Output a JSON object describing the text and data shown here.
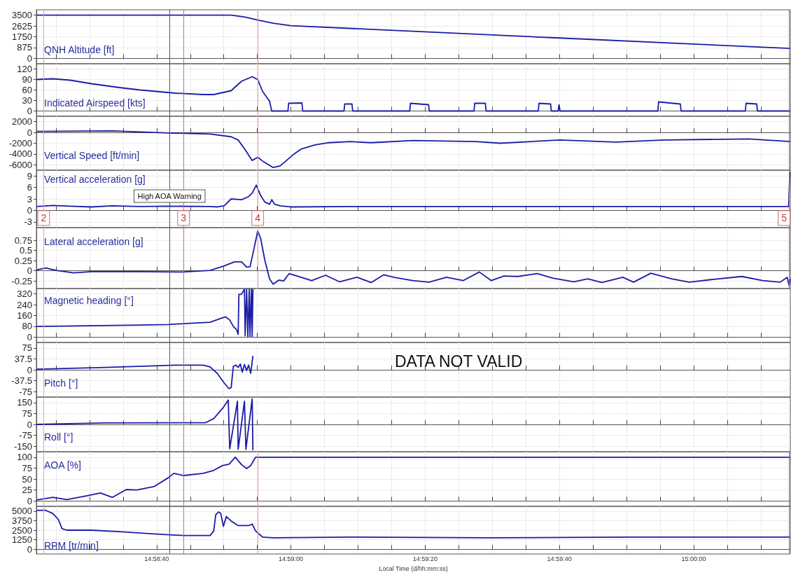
{
  "chart_data": [
    {
      "type": "line",
      "ylabel": "QNH Altitude [ft]",
      "color": "#1c1ca8",
      "grid": true,
      "tick_labels": "y",
      "xlim": [
        14.9728,
        15.004
      ],
      "ylim": [
        -437.5,
        3937.5
      ],
      "yticks": [
        0,
        875,
        1750,
        2625,
        3500
      ],
      "xticks": [
        {
          "value": 14.973611,
          "label": null
        },
        {
          "value": 14.975,
          "label": null
        },
        {
          "value": 14.976389,
          "label": null
        },
        {
          "value": 14.977778,
          "label": null
        },
        {
          "value": 14.979167,
          "label": null
        },
        {
          "value": 14.980556,
          "label": null
        },
        {
          "value": 14.981944,
          "label": null
        },
        {
          "value": 14.983333,
          "label": null
        },
        {
          "value": 14.984722,
          "label": null
        },
        {
          "value": 14.986111,
          "label": null
        },
        {
          "value": 14.9875,
          "label": null
        },
        {
          "value": 14.988889,
          "label": null
        },
        {
          "value": 14.990278,
          "label": null
        },
        {
          "value": 14.991667,
          "label": null
        },
        {
          "value": 14.993056,
          "label": null
        },
        {
          "value": 14.994444,
          "label": null
        },
        {
          "value": 14.995833,
          "label": null
        },
        {
          "value": 14.997222,
          "label": null
        },
        {
          "value": 14.998611,
          "label": null
        },
        {
          "value": 15.0,
          "label": null
        },
        {
          "value": 15.001389,
          "label": null
        },
        {
          "value": 15.002778,
          "label": null
        }
      ],
      "ref_lines": [
        {
          "axis": "x",
          "value": 14.9731,
          "color": "#e8a0a0"
        },
        {
          "axis": "x",
          "value": 14.97831,
          "color": "#555555"
        },
        {
          "axis": "x",
          "value": 14.97889,
          "color": "#d46a6a"
        },
        {
          "axis": "x",
          "value": 14.98196,
          "color": "#e8a0a0"
        },
        {
          "axis": "x",
          "value": 15.00395,
          "color": "#d46a6a"
        }
      ],
      "x": [
        14.97281,
        14.98086,
        14.98144,
        14.98196,
        14.9826,
        14.98332,
        14.99446,
        15.004
      ],
      "values": [
        3500,
        3500,
        3350,
        3100,
        2850,
        2650,
        1650,
        800
      ]
    },
    {
      "type": "line",
      "ylabel": "Indicated Airspeed [kts]",
      "color": "#1c1ca8",
      "grid": true,
      "tick_labels": "y",
      "xlim": [
        14.9728,
        15.004
      ],
      "ylim": [
        -15,
        135
      ],
      "yticks": [
        0,
        30,
        60,
        90,
        120
      ],
      "xticks": [
        {
          "value": 14.973611,
          "label": null
        },
        {
          "value": 14.975,
          "label": null
        },
        {
          "value": 14.976389,
          "label": null
        },
        {
          "value": 14.977778,
          "label": null
        },
        {
          "value": 14.979167,
          "label": null
        },
        {
          "value": 14.980556,
          "label": null
        },
        {
          "value": 14.981944,
          "label": null
        },
        {
          "value": 14.983333,
          "label": null
        },
        {
          "value": 14.984722,
          "label": null
        },
        {
          "value": 14.986111,
          "label": null
        },
        {
          "value": 14.9875,
          "label": null
        },
        {
          "value": 14.988889,
          "label": null
        },
        {
          "value": 14.990278,
          "label": null
        },
        {
          "value": 14.991667,
          "label": null
        },
        {
          "value": 14.993056,
          "label": null
        },
        {
          "value": 14.994444,
          "label": null
        },
        {
          "value": 14.995833,
          "label": null
        },
        {
          "value": 14.997222,
          "label": null
        },
        {
          "value": 14.998611,
          "label": null
        },
        {
          "value": 15.0,
          "label": null
        },
        {
          "value": 15.001389,
          "label": null
        },
        {
          "value": 15.002778,
          "label": null
        }
      ],
      "ref_lines": [
        {
          "axis": "x",
          "value": 14.9731,
          "color": "#e8a0a0"
        },
        {
          "axis": "x",
          "value": 14.97831,
          "color": "#555555"
        },
        {
          "axis": "x",
          "value": 14.97889,
          "color": "#d46a6a"
        },
        {
          "axis": "x",
          "value": 14.98196,
          "color": "#e8a0a0"
        },
        {
          "axis": "x",
          "value": 15.00395,
          "color": "#d46a6a"
        }
      ],
      "x": [
        14.97281,
        14.97348,
        14.9742,
        14.97507,
        14.97623,
        14.9771,
        14.97855,
        14.9797,
        14.98014,
        14.98086,
        14.98129,
        14.98173,
        14.98196,
        14.98216,
        14.98245,
        14.98254,
        14.98321,
        14.98324,
        14.98379,
        14.98382,
        14.98553,
        14.98556,
        14.98586,
        14.98589,
        14.98825,
        14.98828,
        14.98903,
        14.98906,
        14.99091,
        14.99094,
        14.99138,
        14.99141,
        14.99357,
        14.9936,
        14.99408,
        14.99411,
        14.99439,
        14.99443,
        14.99447,
        14.99852,
        14.99855,
        14.99945,
        14.99948,
        15.00214,
        15.00217,
        15.00261,
        15.00264,
        15.004
      ],
      "values": [
        90,
        92,
        88,
        78,
        67,
        60,
        51,
        47,
        47,
        58,
        85,
        98,
        90,
        56,
        28,
        0,
        0,
        22,
        23,
        0,
        0,
        20,
        20,
        0,
        0,
        22,
        18,
        0,
        0,
        22,
        22,
        0,
        0,
        22,
        20,
        0,
        0,
        18,
        0,
        0,
        26,
        20,
        0,
        0,
        22,
        20,
        0,
        0
      ]
    },
    {
      "type": "line",
      "ylabel": "Vertical Speed [ft/min]",
      "color": "#1c1ca8",
      "grid": true,
      "tick_labels": "y",
      "xlim": [
        14.9728,
        15.004
      ],
      "ylim": [
        -7000,
        3000
      ],
      "yticks": [
        -6000,
        -4000,
        -2000,
        0,
        2000
      ],
      "xticks": [
        {
          "value": 14.973611,
          "label": null
        },
        {
          "value": 14.975,
          "label": null
        },
        {
          "value": 14.976389,
          "label": null
        },
        {
          "value": 14.977778,
          "label": null
        },
        {
          "value": 14.979167,
          "label": null
        },
        {
          "value": 14.980556,
          "label": null
        },
        {
          "value": 14.981944,
          "label": null
        },
        {
          "value": 14.983333,
          "label": null
        },
        {
          "value": 14.984722,
          "label": null
        },
        {
          "value": 14.986111,
          "label": null
        },
        {
          "value": 14.9875,
          "label": null
        },
        {
          "value": 14.988889,
          "label": null
        },
        {
          "value": 14.990278,
          "label": null
        },
        {
          "value": 14.991667,
          "label": null
        },
        {
          "value": 14.993056,
          "label": null
        },
        {
          "value": 14.994444,
          "label": null
        },
        {
          "value": 14.995833,
          "label": null
        },
        {
          "value": 14.997222,
          "label": null
        },
        {
          "value": 14.998611,
          "label": null
        },
        {
          "value": 15.0,
          "label": null
        },
        {
          "value": 15.001389,
          "label": null
        },
        {
          "value": 15.002778,
          "label": null
        }
      ],
      "ref_lines": [
        {
          "axis": "x",
          "value": 14.9731,
          "color": "#e8a0a0"
        },
        {
          "axis": "x",
          "value": 14.97831,
          "color": "#555555"
        },
        {
          "axis": "x",
          "value": 14.97889,
          "color": "#d46a6a"
        },
        {
          "axis": "x",
          "value": 14.98196,
          "color": "#e8a0a0"
        },
        {
          "axis": "x",
          "value": 15.00395,
          "color": "#d46a6a"
        }
      ],
      "x": [
        14.97281,
        14.97594,
        14.97826,
        14.97999,
        14.98086,
        14.98115,
        14.98144,
        14.98173,
        14.98196,
        14.98216,
        14.9826,
        14.98289,
        14.98346,
        14.98375,
        14.98433,
        14.98491,
        14.98578,
        14.98665,
        14.98838,
        14.99099,
        14.992,
        14.99446,
        14.99678,
        14.9988,
        15.00228,
        15.004
      ],
      "values": [
        200,
        300,
        -100,
        -300,
        -800,
        -1400,
        -3200,
        -5200,
        -4600,
        -5300,
        -6500,
        -6200,
        -4000,
        -3100,
        -2300,
        -1900,
        -1700,
        -1900,
        -1500,
        -1700,
        -2000,
        -1400,
        -1800,
        -1400,
        -1200,
        -1700
      ]
    },
    {
      "type": "line",
      "ylabel": "Vertical acceleration [g]",
      "color": "#1c1ca8",
      "grid": true,
      "tick_labels": "y",
      "xlim": [
        14.9728,
        15.004
      ],
      "ylim": [
        -4.5,
        10.5
      ],
      "yticks": [
        -3,
        0,
        3,
        6,
        9
      ],
      "xticks": [
        {
          "value": 14.973611,
          "label": null
        },
        {
          "value": 14.975,
          "label": null
        },
        {
          "value": 14.976389,
          "label": null
        },
        {
          "value": 14.977778,
          "label": null
        },
        {
          "value": 14.979167,
          "label": null
        },
        {
          "value": 14.980556,
          "label": null
        },
        {
          "value": 14.981944,
          "label": null
        },
        {
          "value": 14.983333,
          "label": null
        },
        {
          "value": 14.984722,
          "label": null
        },
        {
          "value": 14.986111,
          "label": null
        },
        {
          "value": 14.9875,
          "label": null
        },
        {
          "value": 14.988889,
          "label": null
        },
        {
          "value": 14.990278,
          "label": null
        },
        {
          "value": 14.991667,
          "label": null
        },
        {
          "value": 14.993056,
          "label": null
        },
        {
          "value": 14.994444,
          "label": null
        },
        {
          "value": 14.995833,
          "label": null
        },
        {
          "value": 14.997222,
          "label": null
        },
        {
          "value": 14.998611,
          "label": null
        },
        {
          "value": 15.0,
          "label": null
        },
        {
          "value": 15.001389,
          "label": null
        },
        {
          "value": 15.002778,
          "label": null
        }
      ],
      "ref_lines": [
        {
          "axis": "x",
          "value": 14.9731,
          "color": "#e8a0a0"
        },
        {
          "axis": "x",
          "value": 14.97831,
          "color": "#555555",
          "label": "High AOA Warning"
        },
        {
          "axis": "x",
          "value": 14.97889,
          "color": "#d46a6a"
        },
        {
          "axis": "x",
          "value": 14.98196,
          "color": "#e8a0a0"
        },
        {
          "axis": "x",
          "value": 15.00395,
          "color": "#d46a6a"
        }
      ],
      "annotations": [
        {
          "text": "2",
          "x": 14.9731,
          "y": -2
        },
        {
          "text": "3",
          "x": 14.97889,
          "y": -2
        },
        {
          "text": "4",
          "x": 14.98196,
          "y": -2
        },
        {
          "text": "5",
          "x": 15.00395,
          "y": -2
        }
      ],
      "x": [
        14.97281,
        14.97348,
        14.9742,
        14.97507,
        14.97594,
        14.9771,
        14.97826,
        14.97999,
        14.98028,
        14.98057,
        14.98086,
        14.98129,
        14.98158,
        14.98173,
        14.9819,
        14.98208,
        14.98225,
        14.98245,
        14.98254,
        14.98266,
        14.98289,
        14.98332,
        14.98578,
        14.99162,
        14.99751,
        15.00393,
        15.00398
      ],
      "values": [
        1.0,
        1.3,
        1.1,
        0.9,
        1.2,
        1.0,
        1.1,
        1.0,
        0.9,
        1.2,
        3.0,
        2.8,
        3.6,
        4.5,
        6.6,
        3.9,
        2.2,
        1.6,
        2.8,
        1.6,
        1.2,
        0.9,
        1.0,
        1.0,
        1.0,
        1.0,
        10
      ]
    },
    {
      "type": "line",
      "ylabel": "Lateral acceleration [g]",
      "color": "#1c1ca8",
      "grid": true,
      "tick_labels": "y",
      "xlim": [
        14.9728,
        15.004
      ],
      "ylim": [
        -0.4375,
        1.0625
      ],
      "yticks": [
        -0.25,
        0,
        0.25,
        0.5,
        0.75
      ],
      "xticks": [
        {
          "value": 14.973611,
          "label": null
        },
        {
          "value": 14.975,
          "label": null
        },
        {
          "value": 14.976389,
          "label": null
        },
        {
          "value": 14.977778,
          "label": null
        },
        {
          "value": 14.979167,
          "label": null
        },
        {
          "value": 14.980556,
          "label": null
        },
        {
          "value": 14.981944,
          "label": null
        },
        {
          "value": 14.983333,
          "label": null
        },
        {
          "value": 14.984722,
          "label": null
        },
        {
          "value": 14.986111,
          "label": null
        },
        {
          "value": 14.9875,
          "label": null
        },
        {
          "value": 14.988889,
          "label": null
        },
        {
          "value": 14.990278,
          "label": null
        },
        {
          "value": 14.991667,
          "label": null
        },
        {
          "value": 14.993056,
          "label": null
        },
        {
          "value": 14.994444,
          "label": null
        },
        {
          "value": 14.995833,
          "label": null
        },
        {
          "value": 14.997222,
          "label": null
        },
        {
          "value": 14.998611,
          "label": null
        },
        {
          "value": 15.0,
          "label": null
        },
        {
          "value": 15.001389,
          "label": null
        },
        {
          "value": 15.002778,
          "label": null
        }
      ],
      "ref_lines": [
        {
          "axis": "x",
          "value": 14.9731,
          "color": "#e8a0a0"
        },
        {
          "axis": "x",
          "value": 14.97831,
          "color": "#555555"
        },
        {
          "axis": "x",
          "value": 14.97889,
          "color": "#d46a6a"
        },
        {
          "axis": "x",
          "value": 14.98196,
          "color": "#e8a0a0"
        },
        {
          "axis": "x",
          "value": 15.00395,
          "color": "#d46a6a"
        }
      ],
      "x": [
        14.97281,
        14.97319,
        14.97362,
        14.97435,
        14.97507,
        14.9771,
        14.97883,
        14.97999,
        14.98057,
        14.981,
        14.98129,
        14.9815,
        14.98164,
        14.98179,
        14.98196,
        14.98208,
        14.98225,
        14.98245,
        14.9826,
        14.98283,
        14.98303,
        14.98326,
        14.98375,
        14.98419,
        14.98477,
        14.98534,
        14.98607,
        14.98665,
        14.98717,
        14.98766,
        14.98838,
        14.98905,
        14.98977,
        14.99047,
        14.99113,
        14.99162,
        14.99215,
        14.99272,
        14.99353,
        14.99417,
        14.99504,
        14.99562,
        14.9962,
        14.99707,
        14.99751,
        14.99823,
        14.99909,
        14.99982,
        15.00083,
        15.00199,
        15.00286,
        15.00358,
        15.00387,
        15.00395,
        15.004
      ],
      "values": [
        0.02,
        0.07,
        0.01,
        -0.05,
        -0.02,
        -0.02,
        -0.03,
        0.01,
        0.12,
        0.22,
        0.22,
        0.09,
        0.1,
        0.5,
        0.98,
        0.8,
        0.27,
        -0.2,
        -0.33,
        -0.23,
        -0.25,
        -0.07,
        -0.16,
        -0.24,
        -0.11,
        -0.27,
        -0.16,
        -0.29,
        -0.1,
        -0.17,
        -0.24,
        -0.28,
        -0.16,
        -0.24,
        -0.03,
        -0.24,
        -0.13,
        -0.14,
        -0.07,
        -0.18,
        -0.27,
        -0.2,
        -0.29,
        -0.16,
        -0.28,
        -0.06,
        -0.2,
        -0.28,
        -0.21,
        -0.14,
        -0.24,
        -0.28,
        -0.16,
        -0.36,
        -0.2
      ]
    },
    {
      "type": "line",
      "ylabel": "Magnetic heading [°]",
      "color": "#1c1ca8",
      "grid": true,
      "tick_labels": "y",
      "xlim": [
        14.9728,
        15.004
      ],
      "ylim": [
        -40,
        360
      ],
      "yticks": [
        0,
        80,
        160,
        240,
        320
      ],
      "xticks": [
        {
          "value": 14.973611,
          "label": null
        },
        {
          "value": 14.975,
          "label": null
        },
        {
          "value": 14.976389,
          "label": null
        },
        {
          "value": 14.977778,
          "label": null
        },
        {
          "value": 14.979167,
          "label": null
        },
        {
          "value": 14.980556,
          "label": null
        },
        {
          "value": 14.981944,
          "label": null
        },
        {
          "value": 14.983333,
          "label": null
        },
        {
          "value": 14.984722,
          "label": null
        },
        {
          "value": 14.986111,
          "label": null
        },
        {
          "value": 14.9875,
          "label": null
        },
        {
          "value": 14.988889,
          "label": null
        },
        {
          "value": 14.990278,
          "label": null
        },
        {
          "value": 14.991667,
          "label": null
        },
        {
          "value": 14.993056,
          "label": null
        },
        {
          "value": 14.994444,
          "label": null
        },
        {
          "value": 14.995833,
          "label": null
        },
        {
          "value": 14.997222,
          "label": null
        },
        {
          "value": 14.998611,
          "label": null
        },
        {
          "value": 15.0,
          "label": null
        },
        {
          "value": 15.001389,
          "label": null
        },
        {
          "value": 15.002778,
          "label": null
        }
      ],
      "ref_lines": [
        {
          "axis": "x",
          "value": 14.9731,
          "color": "#e8a0a0"
        },
        {
          "axis": "x",
          "value": 14.97831,
          "color": "#555555"
        },
        {
          "axis": "x",
          "value": 14.97889,
          "color": "#d46a6a"
        }
      ],
      "x": [
        14.97281,
        14.9771,
        14.97826,
        14.97889,
        14.97999,
        14.98043,
        14.98063,
        14.9808,
        14.98095,
        14.98109,
        14.98115,
        14.98118,
        14.98127,
        14.98135,
        14.98141,
        14.98144,
        14.9815,
        14.98155,
        14.98161,
        14.98164,
        14.9817,
        14.98173,
        14.98176
      ],
      "values": [
        79,
        89,
        93,
        100,
        110,
        139,
        150,
        127,
        79,
        54,
        20,
        316,
        316,
        337,
        355,
        10,
        355,
        5,
        355,
        5,
        355,
        5,
        355
      ]
    },
    {
      "type": "line",
      "ylabel": "Pitch [°]",
      "color": "#1c1ca8",
      "grid": true,
      "tick_labels": "y",
      "xlim": [
        14.9728,
        15.004
      ],
      "ylim": [
        -93.75,
        93.75
      ],
      "yticks": [
        -75,
        -37.5,
        0,
        37.5,
        75
      ],
      "annotations": [
        "DATA NOT VALID"
      ],
      "xticks": [
        {
          "value": 14.973611,
          "label": null
        },
        {
          "value": 14.975,
          "label": null
        },
        {
          "value": 14.976389,
          "label": null
        },
        {
          "value": 14.977778,
          "label": null
        },
        {
          "value": 14.979167,
          "label": null
        },
        {
          "value": 14.980556,
          "label": null
        },
        {
          "value": 14.981944,
          "label": null
        },
        {
          "value": 14.983333,
          "label": null
        },
        {
          "value": 14.984722,
          "label": null
        },
        {
          "value": 14.986111,
          "label": null
        },
        {
          "value": 14.9875,
          "label": null
        },
        {
          "value": 14.988889,
          "label": null
        },
        {
          "value": 14.990278,
          "label": null
        },
        {
          "value": 14.991667,
          "label": null
        },
        {
          "value": 14.993056,
          "label": null
        },
        {
          "value": 14.994444,
          "label": null
        },
        {
          "value": 14.995833,
          "label": null
        },
        {
          "value": 14.997222,
          "label": null
        },
        {
          "value": 14.998611,
          "label": null
        },
        {
          "value": 15.0,
          "label": null
        },
        {
          "value": 15.001389,
          "label": null
        },
        {
          "value": 15.002778,
          "label": null
        }
      ],
      "ref_lines": [
        {
          "axis": "x",
          "value": 14.9731,
          "color": "#e8a0a0"
        },
        {
          "axis": "x",
          "value": 14.97831,
          "color": "#555555"
        },
        {
          "axis": "x",
          "value": 14.97889,
          "color": "#d46a6a"
        }
      ],
      "x": [
        14.97281,
        14.97565,
        14.97855,
        14.9797,
        14.97999,
        14.98028,
        14.98057,
        14.98077,
        14.98086,
        14.98095,
        14.98106,
        14.98115,
        14.98124,
        14.98132,
        14.98141,
        14.9815,
        14.98158,
        14.98167,
        14.98176
      ],
      "values": [
        2,
        8,
        16,
        16,
        10,
        -12,
        -45,
        -65,
        -61,
        12,
        16,
        8,
        20,
        -8,
        18,
        -2,
        16,
        -12,
        48
      ]
    },
    {
      "type": "line",
      "ylabel": "Roll [°]",
      "color": "#1c1ca8",
      "grid": true,
      "tick_labels": "y",
      "xlim": [
        14.9728,
        15.004
      ],
      "ylim": [
        -187.5,
        187.5
      ],
      "yticks": [
        -150,
        -75,
        0,
        75,
        150
      ],
      "xticks": [
        {
          "value": 14.973611,
          "label": null
        },
        {
          "value": 14.975,
          "label": null
        },
        {
          "value": 14.976389,
          "label": null
        },
        {
          "value": 14.977778,
          "label": null
        },
        {
          "value": 14.979167,
          "label": null
        },
        {
          "value": 14.980556,
          "label": null
        },
        {
          "value": 14.981944,
          "label": null
        },
        {
          "value": 14.983333,
          "label": null
        },
        {
          "value": 14.984722,
          "label": null
        },
        {
          "value": 14.986111,
          "label": null
        },
        {
          "value": 14.9875,
          "label": null
        },
        {
          "value": 14.988889,
          "label": null
        },
        {
          "value": 14.990278,
          "label": null
        },
        {
          "value": 14.991667,
          "label": null
        },
        {
          "value": 14.993056,
          "label": null
        },
        {
          "value": 14.994444,
          "label": null
        },
        {
          "value": 14.995833,
          "label": null
        },
        {
          "value": 14.997222,
          "label": null
        },
        {
          "value": 14.998611,
          "label": null
        },
        {
          "value": 15.0,
          "label": null
        },
        {
          "value": 15.001389,
          "label": null
        },
        {
          "value": 15.002778,
          "label": null
        }
      ],
      "ref_lines": [
        {
          "axis": "x",
          "value": 14.9731,
          "color": "#e8a0a0"
        },
        {
          "axis": "x",
          "value": 14.97831,
          "color": "#555555"
        },
        {
          "axis": "x",
          "value": 14.97889,
          "color": "#d46a6a"
        }
      ],
      "x": [
        14.97281,
        14.97565,
        14.97883,
        14.97979,
        14.98014,
        14.98051,
        14.98074,
        14.9808,
        14.98112,
        14.98115,
        14.98141,
        14.98147,
        14.98173,
        14.98176
      ],
      "values": [
        0,
        10,
        11,
        11,
        40,
        111,
        167,
        -167,
        159,
        -171,
        159,
        -171,
        175,
        -178
      ]
    },
    {
      "type": "line",
      "ylabel": "AOA [%]",
      "color": "#1c1ca8",
      "grid": true,
      "tick_labels": "y",
      "xlim": [
        14.9728,
        15.004
      ],
      "ylim": [
        -12.5,
        112.5
      ],
      "yticks": [
        0,
        25,
        50,
        75,
        100
      ],
      "xticks": [
        {
          "value": 14.973611,
          "label": null
        },
        {
          "value": 14.975,
          "label": null
        },
        {
          "value": 14.976389,
          "label": null
        },
        {
          "value": 14.977778,
          "label": null
        },
        {
          "value": 14.979167,
          "label": null
        },
        {
          "value": 14.980556,
          "label": null
        },
        {
          "value": 14.981944,
          "label": null
        },
        {
          "value": 14.983333,
          "label": null
        },
        {
          "value": 14.984722,
          "label": null
        },
        {
          "value": 14.986111,
          "label": null
        },
        {
          "value": 14.9875,
          "label": null
        },
        {
          "value": 14.988889,
          "label": null
        },
        {
          "value": 14.990278,
          "label": null
        },
        {
          "value": 14.991667,
          "label": null
        },
        {
          "value": 14.993056,
          "label": null
        },
        {
          "value": 14.994444,
          "label": null
        },
        {
          "value": 14.995833,
          "label": null
        },
        {
          "value": 14.997222,
          "label": null
        },
        {
          "value": 14.998611,
          "label": null
        },
        {
          "value": 15.0,
          "label": null
        },
        {
          "value": 15.001389,
          "label": null
        },
        {
          "value": 15.002778,
          "label": null
        }
      ],
      "ref_lines": [
        {
          "axis": "x",
          "value": 14.9731,
          "color": "#e8a0a0"
        },
        {
          "axis": "x",
          "value": 14.97831,
          "color": "#555555"
        },
        {
          "axis": "x",
          "value": 14.97889,
          "color": "#d46a6a"
        },
        {
          "axis": "x",
          "value": 14.98196,
          "color": "#e8a0a0"
        },
        {
          "axis": "x",
          "value": 15.00395,
          "color": "#d46a6a"
        }
      ],
      "x": [
        14.97281,
        14.97348,
        14.97406,
        14.97493,
        14.97545,
        14.97594,
        14.97652,
        14.97695,
        14.97768,
        14.97826,
        14.97849,
        14.97889,
        14.9797,
        14.98014,
        14.98051,
        14.98077,
        14.98103,
        14.98129,
        14.9815,
        14.98167,
        14.98187,
        15.004
      ],
      "values": [
        2,
        8,
        3,
        12,
        18,
        8,
        26,
        25,
        33,
        53,
        63,
        58,
        63,
        70,
        81,
        84,
        100,
        83,
        74,
        81,
        100,
        100
      ]
    },
    {
      "type": "line",
      "ylabel": "RPM [tr/min]",
      "xlabel": "Local Time (d/hh:mm:ss)",
      "color": "#1c1ca8",
      "grid": true,
      "xlim": [
        14.9728,
        15.004
      ],
      "ylim": [
        -625,
        5625
      ],
      "yticks": [
        0,
        1250,
        2500,
        3750,
        5000
      ],
      "xticks": [
        {
          "value": 14.973611,
          "label": null
        },
        {
          "value": 14.975,
          "label": null
        },
        {
          "value": 14.976389,
          "label": null
        },
        {
          "value": 14.977778,
          "label": "14:58:40"
        },
        {
          "value": 14.979167,
          "label": null
        },
        {
          "value": 14.980556,
          "label": null
        },
        {
          "value": 14.981944,
          "label": null
        },
        {
          "value": 14.983333,
          "label": "14:59:00"
        },
        {
          "value": 14.984722,
          "label": null
        },
        {
          "value": 14.986111,
          "label": null
        },
        {
          "value": 14.9875,
          "label": null
        },
        {
          "value": 14.988889,
          "label": "14:59:20"
        },
        {
          "value": 14.990278,
          "label": null
        },
        {
          "value": 14.991667,
          "label": null
        },
        {
          "value": 14.993056,
          "label": null
        },
        {
          "value": 14.994444,
          "label": "14:59:40"
        },
        {
          "value": 14.995833,
          "label": null
        },
        {
          "value": 14.997222,
          "label": null
        },
        {
          "value": 14.998611,
          "label": null
        },
        {
          "value": 15.0,
          "label": "15:00:00"
        },
        {
          "value": 15.001389,
          "label": null
        },
        {
          "value": 15.002778,
          "label": null
        }
      ],
      "ref_lines": [
        {
          "axis": "x",
          "value": 14.9731,
          "color": "#e8a0a0"
        },
        {
          "axis": "x",
          "value": 14.97831,
          "color": "#555555"
        },
        {
          "axis": "x",
          "value": 14.97889,
          "color": "#d46a6a"
        },
        {
          "axis": "x",
          "value": 14.98196,
          "color": "#e8a0a0"
        },
        {
          "axis": "x",
          "value": 15.00395,
          "color": "#d46a6a"
        }
      ],
      "x": [
        14.97281,
        14.97319,
        14.97348,
        14.97371,
        14.97386,
        14.97406,
        14.97507,
        14.97623,
        14.97768,
        14.97889,
        14.97999,
        14.98014,
        14.98022,
        14.98034,
        14.98043,
        14.98054,
        14.98066,
        14.98086,
        14.98115,
        14.98158,
        14.98173,
        14.98187,
        14.98216,
        14.9826,
        14.98578,
        14.99157,
        14.99736,
        15.004
      ],
      "values": [
        5100,
        5100,
        4700,
        3900,
        2700,
        2500,
        2500,
        2300,
        2000,
        1800,
        1800,
        2400,
        4500,
        4900,
        4700,
        3000,
        4300,
        3700,
        3100,
        3100,
        3300,
        2400,
        1600,
        1500,
        1600,
        1500,
        1600,
        1600
      ]
    }
  ]
}
